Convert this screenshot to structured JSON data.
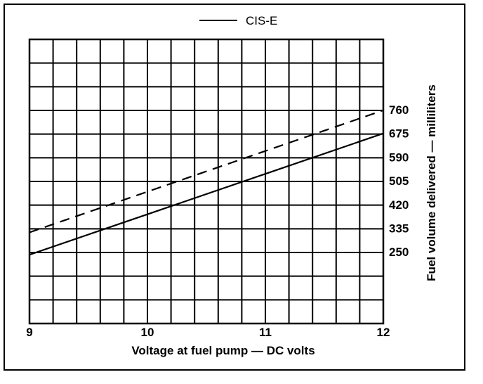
{
  "chart_data": {
    "type": "line",
    "title": "",
    "xlabel": "Voltage at fuel pump — DC volts",
    "ylabel": "Fuel volume delivered — milliliters",
    "xlim": [
      9,
      12
    ],
    "ylim": [
      250,
      760
    ],
    "x_ticks": [
      "9",
      "10",
      "11",
      "12"
    ],
    "y_ticks": [
      "760",
      "675",
      "590",
      "505",
      "420",
      "335",
      "250"
    ],
    "grid": true,
    "legend": {
      "position": "top-center",
      "entries": [
        "CIS-E"
      ]
    },
    "series": [
      {
        "name": "CIS-E",
        "style": "solid",
        "x": [
          9,
          12
        ],
        "y": [
          240,
          675
        ]
      },
      {
        "style": "dashed",
        "x": [
          9,
          12
        ],
        "y": [
          320,
          758
        ]
      }
    ]
  }
}
